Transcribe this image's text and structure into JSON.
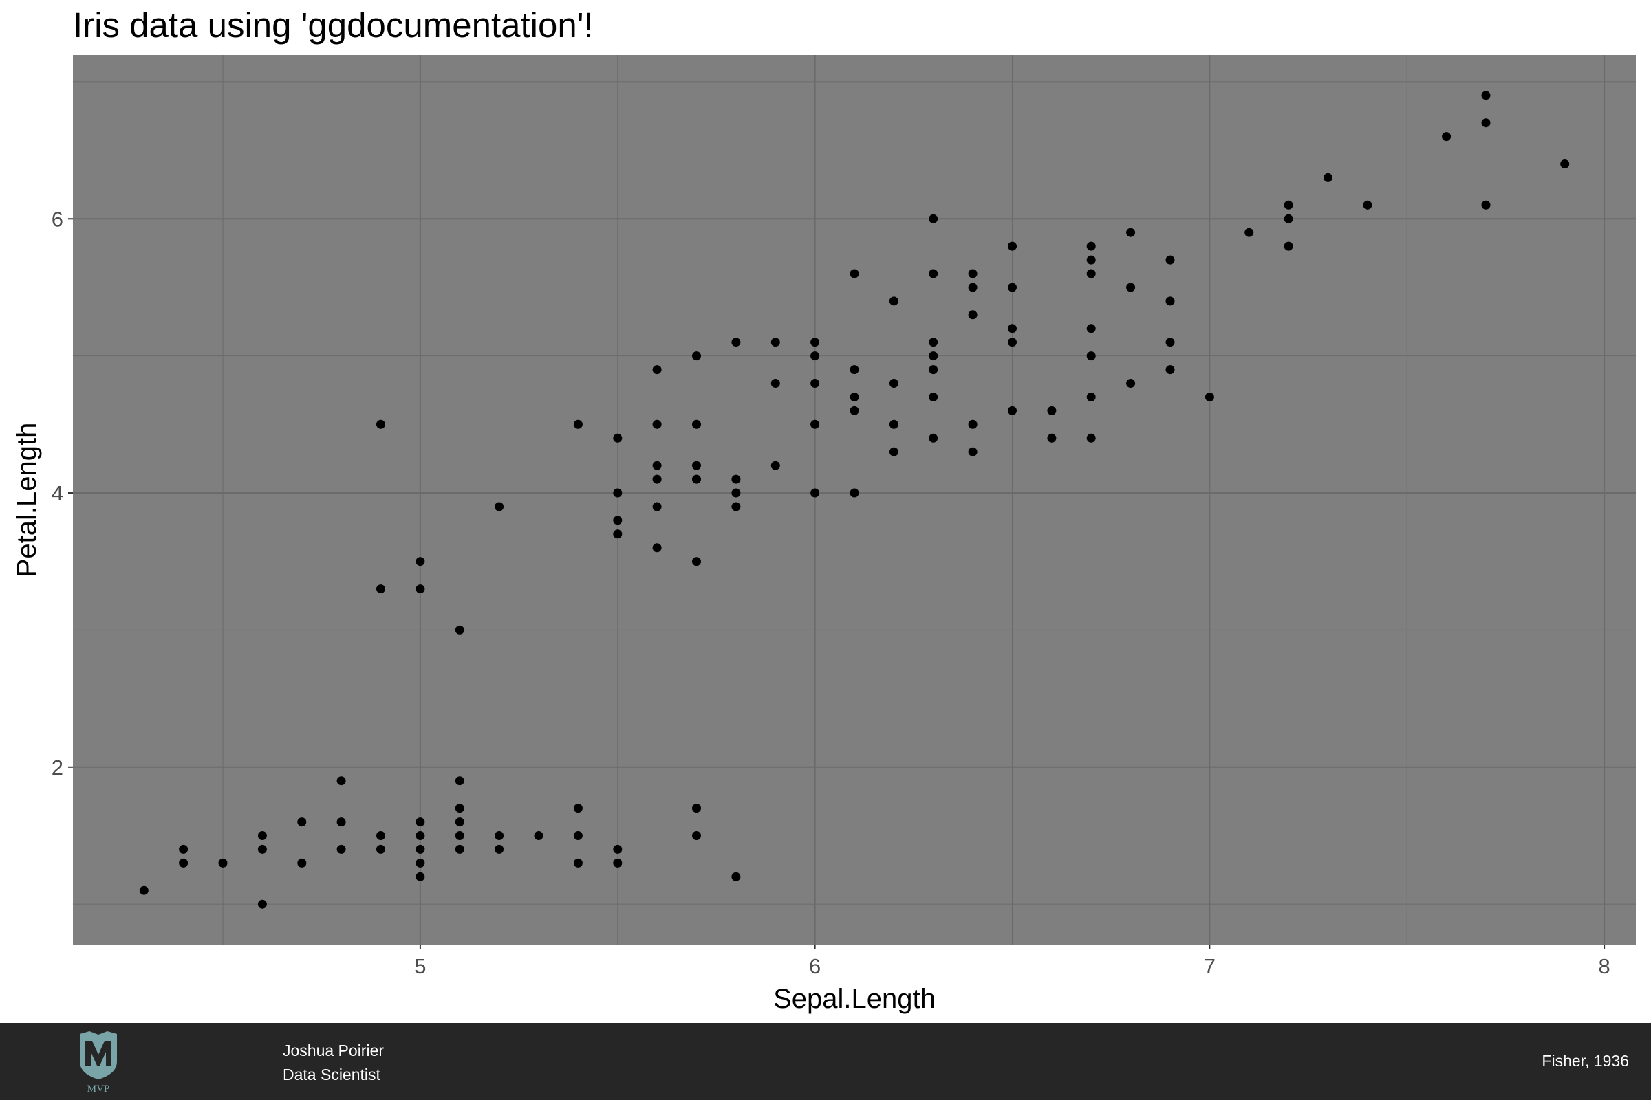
{
  "chart_data": {
    "type": "scatter",
    "title": "Iris data using 'ggdocumentation'!",
    "xlabel": "Sepal.Length",
    "ylabel": "Petal.Length",
    "xlim": [
      4.12,
      8.08
    ],
    "ylim": [
      0.705,
      7.195
    ],
    "x_ticks": [
      5,
      6,
      7,
      8
    ],
    "y_ticks": [
      2,
      4,
      6
    ],
    "x_minor": [
      4.5,
      5.5,
      6.5,
      7.5
    ],
    "y_minor": [
      1,
      3,
      5,
      7
    ],
    "grid": true,
    "colors": {
      "panel_background": "#7f7f7f",
      "grid_line": "#6b6b6b",
      "point": "#000000"
    },
    "points": [
      [
        4.3,
        1.1
      ],
      [
        4.4,
        1.4
      ],
      [
        4.4,
        1.3
      ],
      [
        4.5,
        1.3
      ],
      [
        4.6,
        1.5
      ],
      [
        4.6,
        1.4
      ],
      [
        4.6,
        1.0
      ],
      [
        4.7,
        1.6
      ],
      [
        4.7,
        1.3
      ],
      [
        4.8,
        1.9
      ],
      [
        4.8,
        1.6
      ],
      [
        4.8,
        1.4
      ],
      [
        4.9,
        4.5
      ],
      [
        4.9,
        3.3
      ],
      [
        4.9,
        1.5
      ],
      [
        4.9,
        1.4
      ],
      [
        5.0,
        3.5
      ],
      [
        5.0,
        3.3
      ],
      [
        5.0,
        1.6
      ],
      [
        5.0,
        1.5
      ],
      [
        5.0,
        1.4
      ],
      [
        5.0,
        1.3
      ],
      [
        5.0,
        1.2
      ],
      [
        5.1,
        3.0
      ],
      [
        5.1,
        1.9
      ],
      [
        5.1,
        1.7
      ],
      [
        5.1,
        1.6
      ],
      [
        5.1,
        1.5
      ],
      [
        5.1,
        1.4
      ],
      [
        5.2,
        3.9
      ],
      [
        5.2,
        1.5
      ],
      [
        5.2,
        1.4
      ],
      [
        5.3,
        1.5
      ],
      [
        5.4,
        4.5
      ],
      [
        5.4,
        1.7
      ],
      [
        5.4,
        1.5
      ],
      [
        5.4,
        1.3
      ],
      [
        5.5,
        4.4
      ],
      [
        5.5,
        4.0
      ],
      [
        5.5,
        3.8
      ],
      [
        5.5,
        3.7
      ],
      [
        5.5,
        1.4
      ],
      [
        5.5,
        1.3
      ],
      [
        5.6,
        4.9
      ],
      [
        5.6,
        4.5
      ],
      [
        5.6,
        4.2
      ],
      [
        5.6,
        4.1
      ],
      [
        5.6,
        3.9
      ],
      [
        5.6,
        3.6
      ],
      [
        5.7,
        5.0
      ],
      [
        5.7,
        4.5
      ],
      [
        5.7,
        4.2
      ],
      [
        5.7,
        4.1
      ],
      [
        5.7,
        3.5
      ],
      [
        5.7,
        1.7
      ],
      [
        5.7,
        1.5
      ],
      [
        5.8,
        5.1
      ],
      [
        5.8,
        4.1
      ],
      [
        5.8,
        4.0
      ],
      [
        5.8,
        3.9
      ],
      [
        5.8,
        1.2
      ],
      [
        5.9,
        5.1
      ],
      [
        5.9,
        4.8
      ],
      [
        5.9,
        4.2
      ],
      [
        6.0,
        5.1
      ],
      [
        6.0,
        5.0
      ],
      [
        6.0,
        4.8
      ],
      [
        6.0,
        4.5
      ],
      [
        6.0,
        4.0
      ],
      [
        6.1,
        5.6
      ],
      [
        6.1,
        4.9
      ],
      [
        6.1,
        4.7
      ],
      [
        6.1,
        4.6
      ],
      [
        6.1,
        4.0
      ],
      [
        6.2,
        5.4
      ],
      [
        6.2,
        4.8
      ],
      [
        6.2,
        4.5
      ],
      [
        6.2,
        4.3
      ],
      [
        6.3,
        6.0
      ],
      [
        6.3,
        5.6
      ],
      [
        6.3,
        5.1
      ],
      [
        6.3,
        5.0
      ],
      [
        6.3,
        4.9
      ],
      [
        6.3,
        4.7
      ],
      [
        6.3,
        4.4
      ],
      [
        6.4,
        5.6
      ],
      [
        6.4,
        5.5
      ],
      [
        6.4,
        5.3
      ],
      [
        6.4,
        4.5
      ],
      [
        6.4,
        4.3
      ],
      [
        6.5,
        5.8
      ],
      [
        6.5,
        5.5
      ],
      [
        6.5,
        5.2
      ],
      [
        6.5,
        5.1
      ],
      [
        6.5,
        4.6
      ],
      [
        6.6,
        4.6
      ],
      [
        6.6,
        4.4
      ],
      [
        6.7,
        5.8
      ],
      [
        6.7,
        5.7
      ],
      [
        6.7,
        5.6
      ],
      [
        6.7,
        5.2
      ],
      [
        6.7,
        5.0
      ],
      [
        6.7,
        4.7
      ],
      [
        6.7,
        4.4
      ],
      [
        6.8,
        5.9
      ],
      [
        6.8,
        5.5
      ],
      [
        6.8,
        4.8
      ],
      [
        6.9,
        5.7
      ],
      [
        6.9,
        5.4
      ],
      [
        6.9,
        5.1
      ],
      [
        6.9,
        4.9
      ],
      [
        7.0,
        4.7
      ],
      [
        7.1,
        5.9
      ],
      [
        7.2,
        6.1
      ],
      [
        7.2,
        6.0
      ],
      [
        7.2,
        5.8
      ],
      [
        7.3,
        6.3
      ],
      [
        7.4,
        6.1
      ],
      [
        7.6,
        6.6
      ],
      [
        7.7,
        6.9
      ],
      [
        7.7,
        6.7
      ],
      [
        7.7,
        6.1
      ],
      [
        7.9,
        6.4
      ]
    ]
  },
  "footer": {
    "author_name": "Joshua Poirier",
    "author_role": "Data Scientist",
    "source": "Fisher, 1936",
    "logo_text": "MVP",
    "colors": {
      "background": "#262626",
      "logo": "#7aa5a8"
    }
  }
}
